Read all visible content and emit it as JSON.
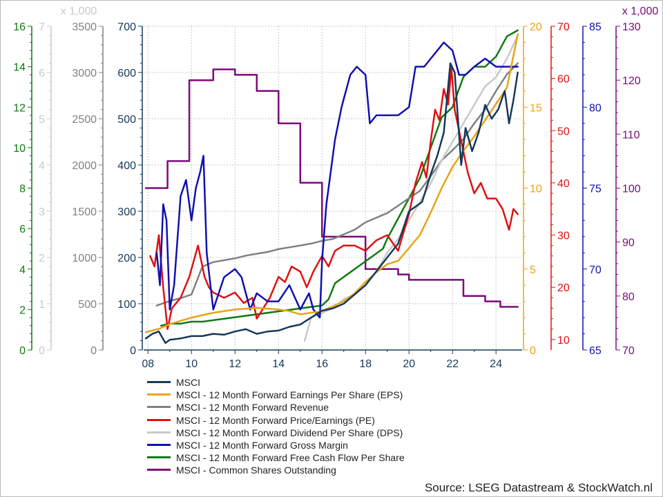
{
  "chart_data": {
    "type": "line",
    "source": "Source: LSEG Datastream & StockWatch.nl",
    "x_axis": {
      "range": [
        2007.8,
        2025.2
      ],
      "ticks": [
        2008,
        2010,
        2012,
        2014,
        2016,
        2018,
        2020,
        2022,
        2024
      ],
      "tick_labels": [
        "08",
        "10",
        "12",
        "14",
        "16",
        "18",
        "20",
        "22",
        "24"
      ]
    },
    "axes": [
      {
        "id": "fcf",
        "color": "#0f7a0f",
        "min": 0,
        "max": 16,
        "ticks": [
          0,
          2,
          4,
          6,
          8,
          10,
          12,
          14,
          16
        ],
        "labels": [
          "0",
          "2",
          "4",
          "6",
          "8",
          "10",
          "12",
          "14",
          "16"
        ],
        "multiplier": ""
      },
      {
        "id": "dps",
        "color": "#c9c9c9",
        "min": 0,
        "max": 7,
        "ticks": [
          0,
          1,
          2,
          3,
          4,
          5,
          6,
          7
        ],
        "labels": [
          "0",
          "1",
          "2",
          "3",
          "4",
          "5",
          "6",
          "7"
        ],
        "multiplier": "x 1,000"
      },
      {
        "id": "revenue",
        "color": "#808080",
        "min": 0,
        "max": 3500,
        "ticks": [
          0,
          500,
          1000,
          1500,
          2000,
          2500,
          3000,
          3500
        ],
        "labels": [
          "0",
          "500",
          "1000",
          "1500",
          "2000",
          "2500",
          "3000",
          "3500"
        ],
        "multiplier": ""
      },
      {
        "id": "msci",
        "color": "#14385a",
        "min": 0,
        "max": 700,
        "ticks": [
          0,
          100,
          200,
          300,
          400,
          500,
          600,
          700
        ],
        "labels": [
          "0",
          "100",
          "200",
          "300",
          "400",
          "500",
          "600",
          "700"
        ],
        "multiplier": ""
      },
      {
        "id": "eps",
        "color": "#e8a317",
        "min": 0,
        "max": 20,
        "ticks": [
          0,
          5,
          10,
          15,
          20
        ],
        "labels": [
          "0",
          "5",
          "10",
          "15",
          "20"
        ],
        "multiplier": ""
      },
      {
        "id": "pe",
        "color": "#e01010",
        "min": 8,
        "max": 70,
        "ticks": [
          10,
          20,
          30,
          40,
          50,
          60,
          70
        ],
        "labels": [
          "10",
          "20",
          "30",
          "40",
          "50",
          "60",
          "70"
        ],
        "multiplier": ""
      },
      {
        "id": "margin",
        "color": "#1010b0",
        "min": 65,
        "max": 85,
        "ticks": [
          65,
          70,
          75,
          80,
          85
        ],
        "labels": [
          "65",
          "70",
          "75",
          "80",
          "85"
        ],
        "multiplier": ""
      },
      {
        "id": "shares",
        "color": "#7a0a7a",
        "min": 70,
        "max": 130,
        "ticks": [
          70,
          80,
          90,
          100,
          110,
          120,
          130
        ],
        "labels": [
          "70",
          "80",
          "90",
          "100",
          "110",
          "120",
          "130"
        ],
        "multiplier": "x 1,000"
      }
    ],
    "series": [
      {
        "name": "MSCI",
        "axis": "msci",
        "color": "#14385a",
        "x": [
          2007.9,
          2008.2,
          2008.5,
          2008.8,
          2009.0,
          2009.5,
          2010.0,
          2010.5,
          2011.0,
          2011.5,
          2012.0,
          2012.5,
          2013.0,
          2013.5,
          2014.0,
          2014.5,
          2015.0,
          2015.5,
          2016.0,
          2016.5,
          2017.0,
          2017.5,
          2018.0,
          2018.5,
          2019.0,
          2019.5,
          2020.0,
          2020.3,
          2020.6,
          2021.0,
          2021.3,
          2021.6,
          2021.9,
          2022.1,
          2022.4,
          2022.6,
          2022.9,
          2023.2,
          2023.5,
          2023.8,
          2024.1,
          2024.4,
          2024.6,
          2024.8,
          2025.0
        ],
        "values": [
          25,
          35,
          40,
          15,
          22,
          25,
          30,
          30,
          35,
          33,
          40,
          45,
          35,
          40,
          42,
          50,
          55,
          70,
          85,
          90,
          100,
          120,
          140,
          170,
          200,
          230,
          300,
          310,
          320,
          380,
          420,
          470,
          620,
          600,
          400,
          480,
          430,
          470,
          530,
          500,
          520,
          560,
          490,
          540,
          600
        ]
      },
      {
        "name": "MSCI - 12 Month Forward Earnings Per Share (EPS)",
        "axis": "eps",
        "color": "#e8a317",
        "x": [
          2007.9,
          2008.5,
          2009.0,
          2010.0,
          2011.0,
          2012.0,
          2013.0,
          2014.0,
          2014.5,
          2015.0,
          2015.5,
          2016.0,
          2016.5,
          2017.0,
          2017.5,
          2018.0,
          2018.5,
          2019.0,
          2019.5,
          2020.0,
          2020.5,
          2021.0,
          2021.5,
          2022.0,
          2022.5,
          2023.0,
          2023.5,
          2024.0,
          2024.5,
          2025.0
        ],
        "values": [
          1.1,
          1.3,
          1.6,
          2.0,
          2.3,
          2.5,
          2.6,
          2.5,
          2.4,
          2.2,
          2.3,
          2.4,
          2.7,
          3.0,
          3.5,
          4.2,
          4.8,
          5.3,
          5.5,
          6.3,
          7.1,
          8.5,
          10.0,
          11.3,
          12.3,
          13.2,
          14.2,
          15.2,
          16.2,
          19.5
        ]
      },
      {
        "name": "MSCI - 12 Month Forward Revenue",
        "axis": "revenue",
        "color": "#808080",
        "x": [
          2008.4,
          2009.0,
          2009.5,
          2010.0,
          2010.5,
          2011.0,
          2011.5,
          2012.0,
          2012.5,
          2013.0,
          2013.5,
          2014.0,
          2014.5,
          2015.0,
          2015.5,
          2016.0,
          2016.5,
          2017.0,
          2017.5,
          2018.0,
          2018.5,
          2019.0,
          2019.5,
          2020.0,
          2020.5,
          2021.0,
          2021.5,
          2022.0,
          2022.5,
          2023.0,
          2023.5,
          2024.0,
          2024.5,
          2025.0
        ],
        "values": [
          480,
          530,
          560,
          600,
          900,
          950,
          970,
          990,
          1020,
          1040,
          1060,
          1090,
          1110,
          1130,
          1150,
          1180,
          1200,
          1250,
          1300,
          1380,
          1430,
          1480,
          1560,
          1640,
          1720,
          1880,
          2050,
          2160,
          2280,
          2450,
          2600,
          2800,
          2980,
          3100
        ]
      },
      {
        "name": "MSCI - 12 Month Forward Price/Earnings (PE)",
        "axis": "pe",
        "color": "#e01010",
        "x": [
          2008.1,
          2008.3,
          2008.5,
          2008.7,
          2008.9,
          2009.1,
          2009.5,
          2009.9,
          2010.3,
          2010.6,
          2010.8,
          2011.0,
          2011.5,
          2012.0,
          2012.4,
          2012.8,
          2013.0,
          2013.3,
          2013.6,
          2014.0,
          2014.3,
          2014.6,
          2015.0,
          2015.3,
          2015.6,
          2016.0,
          2016.3,
          2016.6,
          2017.0,
          2017.5,
          2018.0,
          2018.5,
          2019.0,
          2019.5,
          2020.0,
          2020.3,
          2020.6,
          2020.8,
          2021.0,
          2021.2,
          2021.4,
          2021.6,
          2021.8,
          2021.95,
          2022.1,
          2022.4,
          2022.7,
          2023.0,
          2023.3,
          2023.6,
          2024.0,
          2024.3,
          2024.6,
          2024.8,
          2025.0
        ],
        "values": [
          26,
          24,
          30,
          20,
          12,
          16,
          18,
          22,
          28,
          22,
          20,
          19,
          18,
          19,
          17,
          18,
          14,
          16,
          18,
          22,
          21,
          24,
          23,
          20,
          23,
          26,
          24,
          27,
          28,
          28,
          27,
          29,
          30,
          27,
          34,
          40,
          44,
          41,
          48,
          54,
          52,
          58,
          55,
          62,
          54,
          48,
          42,
          38,
          40,
          37,
          37,
          35,
          31,
          35,
          34
        ]
      },
      {
        "name": "MSCI - 12 Month Forward Dividend Per Share (DPS)",
        "axis": "dps",
        "color": "#c9c9c9",
        "x": [
          2015.2,
          2015.5,
          2016.0,
          2016.5,
          2017.0,
          2017.5,
          2018.0,
          2018.5,
          2019.0,
          2019.5,
          2020.0,
          2020.5,
          2021.0,
          2021.5,
          2022.0,
          2022.5,
          2023.0,
          2023.5,
          2024.0,
          2024.5,
          2025.0
        ],
        "values": [
          0.2,
          0.7,
          0.8,
          0.9,
          1.1,
          1.2,
          1.4,
          1.7,
          2.1,
          2.4,
          2.8,
          3.2,
          3.6,
          4.1,
          4.5,
          4.9,
          5.3,
          5.7,
          5.9,
          6.3,
          6.8
        ]
      },
      {
        "name": "MSCI - 12 Month Forward Gross Margin",
        "axis": "margin",
        "color": "#1010b0",
        "x": [
          2008.4,
          2008.55,
          2008.7,
          2008.85,
          2009.0,
          2009.2,
          2009.5,
          2009.75,
          2010.0,
          2010.2,
          2010.4,
          2010.55,
          2010.7,
          2011.0,
          2011.5,
          2012.0,
          2012.3,
          2012.7,
          2013.0,
          2013.5,
          2014.0,
          2014.5,
          2015.0,
          2015.4,
          2015.6,
          2015.9,
          2016.0,
          2016.2,
          2016.6,
          2016.9,
          2017.0,
          2017.3,
          2017.6,
          2018.0,
          2018.2,
          2018.5,
          2019.0,
          2019.5,
          2020.0,
          2020.3,
          2020.7,
          2021.0,
          2021.3,
          2021.6,
          2022.0,
          2022.3,
          2022.6,
          2023.0,
          2023.5,
          2024.0,
          2024.5,
          2025.0
        ],
        "values": [
          71,
          69,
          74,
          73,
          67.5,
          69,
          74.5,
          75.5,
          73,
          75,
          76,
          77,
          71,
          67.5,
          69.5,
          70,
          69.5,
          67.5,
          68.5,
          68,
          68,
          69,
          67.5,
          68.5,
          67.5,
          67,
          70.5,
          74,
          78,
          80,
          80.5,
          82,
          82.5,
          82,
          79,
          79.5,
          79.5,
          79.5,
          80,
          82.5,
          82.5,
          83,
          83.5,
          84,
          83.5,
          82,
          82,
          82.5,
          83,
          82.5,
          82.5,
          82.5
        ]
      },
      {
        "name": "MSCI - 12 Month Forward Free Cash Flow Per Share",
        "axis": "fcf",
        "color": "#0f7a0f",
        "x": [
          2008.6,
          2009.0,
          2009.5,
          2010.0,
          2010.5,
          2016.0,
          2016.3,
          2016.6,
          2018.8,
          2019.0,
          2019.5,
          2020.0,
          2020.5,
          2021.0,
          2021.5,
          2022.0,
          2022.5,
          2023.0,
          2023.5,
          2024.0,
          2024.5,
          2025.0
        ],
        "values": [
          1.2,
          1.3,
          1.3,
          1.4,
          1.4,
          2.2,
          2.5,
          3.3,
          5.0,
          5.5,
          6.5,
          7.5,
          8.5,
          10.0,
          11.5,
          12.0,
          13.5,
          14.0,
          14.0,
          14.5,
          15.5,
          15.8
        ]
      },
      {
        "name": "MSCI - Common Shares Outstanding",
        "axis": "shares",
        "color": "#7a0a7a",
        "step": true,
        "x": [
          2007.9,
          2008.9,
          2009.9,
          2011.0,
          2012.0,
          2013.0,
          2014.0,
          2015.0,
          2016.0,
          2018.0,
          2019.5,
          2020.0,
          2021.5,
          2022.5,
          2023.5,
          2024.2,
          2025.0
        ],
        "values": [
          100,
          105,
          120,
          122,
          121,
          118,
          112,
          101,
          91,
          85,
          84,
          83,
          83,
          80,
          79,
          78,
          78
        ]
      }
    ]
  }
}
